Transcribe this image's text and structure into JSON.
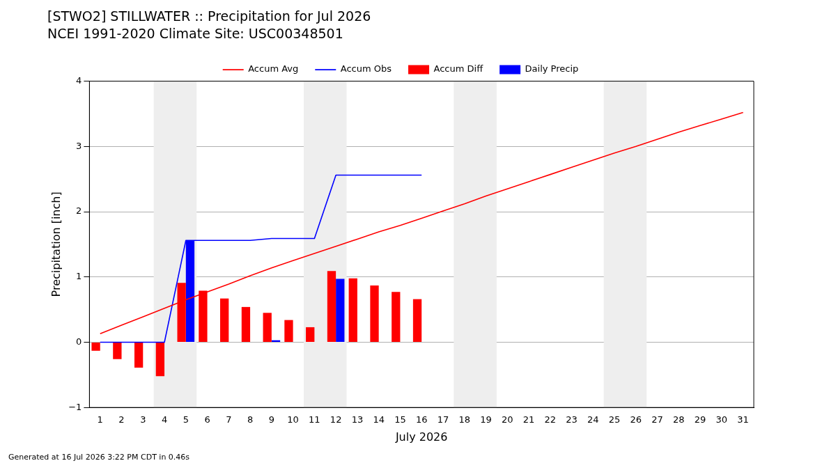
{
  "chart_data": {
    "type": "line",
    "title": "[STWO2] STILLWATER :: Precipitation for Jul 2026",
    "subtitle": "NCEI 1991-2020 Climate Site: USC00348501",
    "xlabel": "July 2026",
    "ylabel": "Precipitation [inch]",
    "annotations": [
      "Generated at 16 Jul 2026 3:22 PM CDT in 0.46s"
    ],
    "xlim": [
      0.5,
      31.5
    ],
    "xticks": [
      1,
      2,
      3,
      4,
      5,
      6,
      7,
      8,
      9,
      10,
      11,
      12,
      13,
      14,
      15,
      16,
      17,
      18,
      19,
      20,
      21,
      22,
      23,
      24,
      25,
      26,
      27,
      28,
      29,
      30,
      31
    ],
    "ylim": [
      -1,
      4
    ],
    "yticks": [
      -1,
      0,
      1,
      2,
      3,
      4
    ],
    "grid": "y",
    "legend": "top",
    "bands": [
      {
        "axis": "x",
        "from": 3.5,
        "to": 5.5,
        "color": "#eeeeee"
      },
      {
        "axis": "x",
        "from": 10.5,
        "to": 12.5,
        "color": "#eeeeee"
      },
      {
        "axis": "x",
        "from": 17.5,
        "to": 19.5,
        "color": "#eeeeee"
      },
      {
        "axis": "x",
        "from": 24.5,
        "to": 26.5,
        "color": "#eeeeee"
      }
    ],
    "series": [
      {
        "name": "Accum Avg",
        "color": "#ff0000",
        "x": [
          1,
          2,
          3,
          4,
          5,
          6,
          7,
          8,
          9,
          10,
          11,
          12,
          13,
          14,
          15,
          16,
          17,
          18,
          19,
          20,
          21,
          22,
          23,
          24,
          25,
          26,
          27,
          28,
          29,
          30,
          31
        ],
        "values": [
          0.13,
          0.26,
          0.39,
          0.52,
          0.65,
          0.77,
          0.89,
          1.02,
          1.14,
          1.25,
          1.36,
          1.47,
          1.58,
          1.69,
          1.79,
          1.9,
          2.01,
          2.12,
          2.24,
          2.35,
          2.46,
          2.57,
          2.68,
          2.79,
          2.9,
          3.0,
          3.11,
          3.22,
          3.32,
          3.42,
          3.52
        ]
      },
      {
        "name": "Accum Obs",
        "color": "#0000ff",
        "x": [
          1,
          2,
          3,
          4,
          5,
          6,
          7,
          8,
          9,
          10,
          11,
          12,
          13,
          14,
          15,
          16
        ],
        "values": [
          0,
          0,
          0,
          0,
          1.56,
          1.56,
          1.56,
          1.56,
          1.59,
          1.59,
          1.59,
          2.56,
          2.56,
          2.56,
          2.56,
          2.56
        ]
      },
      {
        "name": "Accum Diff",
        "type": "bar",
        "color": "#ff0000",
        "x": [
          1,
          2,
          3,
          4,
          5,
          6,
          7,
          8,
          9,
          10,
          11,
          12,
          13,
          14,
          15,
          16
        ],
        "values": [
          -0.13,
          -0.26,
          -0.39,
          -0.52,
          0.91,
          0.79,
          0.67,
          0.54,
          0.45,
          0.34,
          0.23,
          1.09,
          0.98,
          0.87,
          0.77,
          0.66
        ]
      },
      {
        "name": "Daily Precip",
        "type": "bar",
        "color": "#0000ff",
        "x": [
          1,
          2,
          3,
          4,
          5,
          6,
          7,
          8,
          9,
          10,
          11,
          12,
          13,
          14,
          15,
          16
        ],
        "values": [
          0,
          0,
          0,
          0,
          1.56,
          0,
          0,
          0,
          0.03,
          0,
          0,
          0.97,
          0,
          0,
          0,
          0
        ]
      }
    ]
  }
}
